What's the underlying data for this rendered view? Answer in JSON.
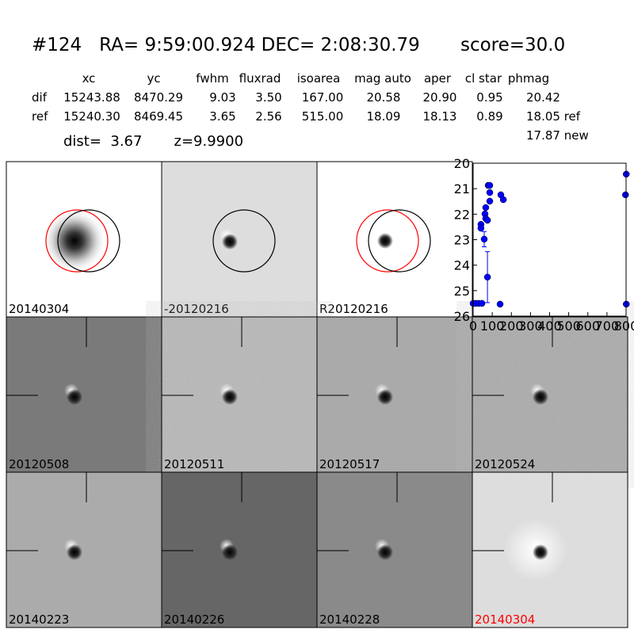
{
  "header": {
    "title": "#124   RA= 9:59:00.924 DEC= 2:08:30.79       score=30.0"
  },
  "table": {
    "columns": [
      "xc",
      "yc",
      "fwhm",
      "fluxrad",
      "isoarea",
      "mag auto",
      "aper",
      "cl star",
      "phmag"
    ],
    "rows": [
      [
        "dif",
        "15243.88",
        "8470.29",
        "9.03",
        "3.50",
        "167.00",
        "20.58",
        "20.90",
        "0.95",
        "20.42"
      ],
      [
        "ref",
        "15240.30",
        "8469.45",
        "3.65",
        "2.56",
        "515.00",
        "18.09",
        "18.13",
        "0.89",
        "18.05 ref"
      ]
    ],
    "extra": "17.87 new"
  },
  "dist": "dist=  3.67       z=9.9900",
  "panels": [
    {
      "label": "20140304"
    },
    {
      "label": "-20120216"
    },
    {
      "label": "R20120216"
    },
    {
      "label": "20120508"
    },
    {
      "label": "20120511"
    },
    {
      "label": "20120517"
    },
    {
      "label": "20120524"
    },
    {
      "label": "20140223"
    },
    {
      "label": "20140226"
    },
    {
      "label": "20140228"
    },
    {
      "label": "20140304",
      "color": "#ff0000"
    }
  ],
  "chart_data": {
    "type": "scatter",
    "color": "#0000ff",
    "x": [
      0,
      12,
      29,
      46,
      41,
      41,
      58,
      66,
      62,
      66,
      75,
      79,
      87,
      87,
      87,
      75,
      141,
      145,
      158,
      801,
      797,
      801
    ],
    "values": [
      25.5,
      25.5,
      25.5,
      25.5,
      22.4,
      22.55,
      22.98,
      21.74,
      21.99,
      22.17,
      22.24,
      20.87,
      20.87,
      21.15,
      21.49,
      24.47,
      25.53,
      21.24,
      21.43,
      20.43,
      21.24,
      25.53
    ],
    "errors": [
      null,
      null,
      null,
      null,
      null,
      null,
      0.3,
      null,
      null,
      null,
      null,
      null,
      null,
      null,
      null,
      1.0,
      null,
      null,
      null,
      null,
      null,
      null
    ],
    "xlim": [
      0,
      800
    ],
    "xticks": [
      0,
      100,
      200,
      300,
      400,
      500,
      600,
      700,
      800
    ],
    "ylim": [
      26,
      20
    ],
    "yticks": [
      20,
      21,
      22,
      23,
      24,
      25,
      26
    ]
  }
}
